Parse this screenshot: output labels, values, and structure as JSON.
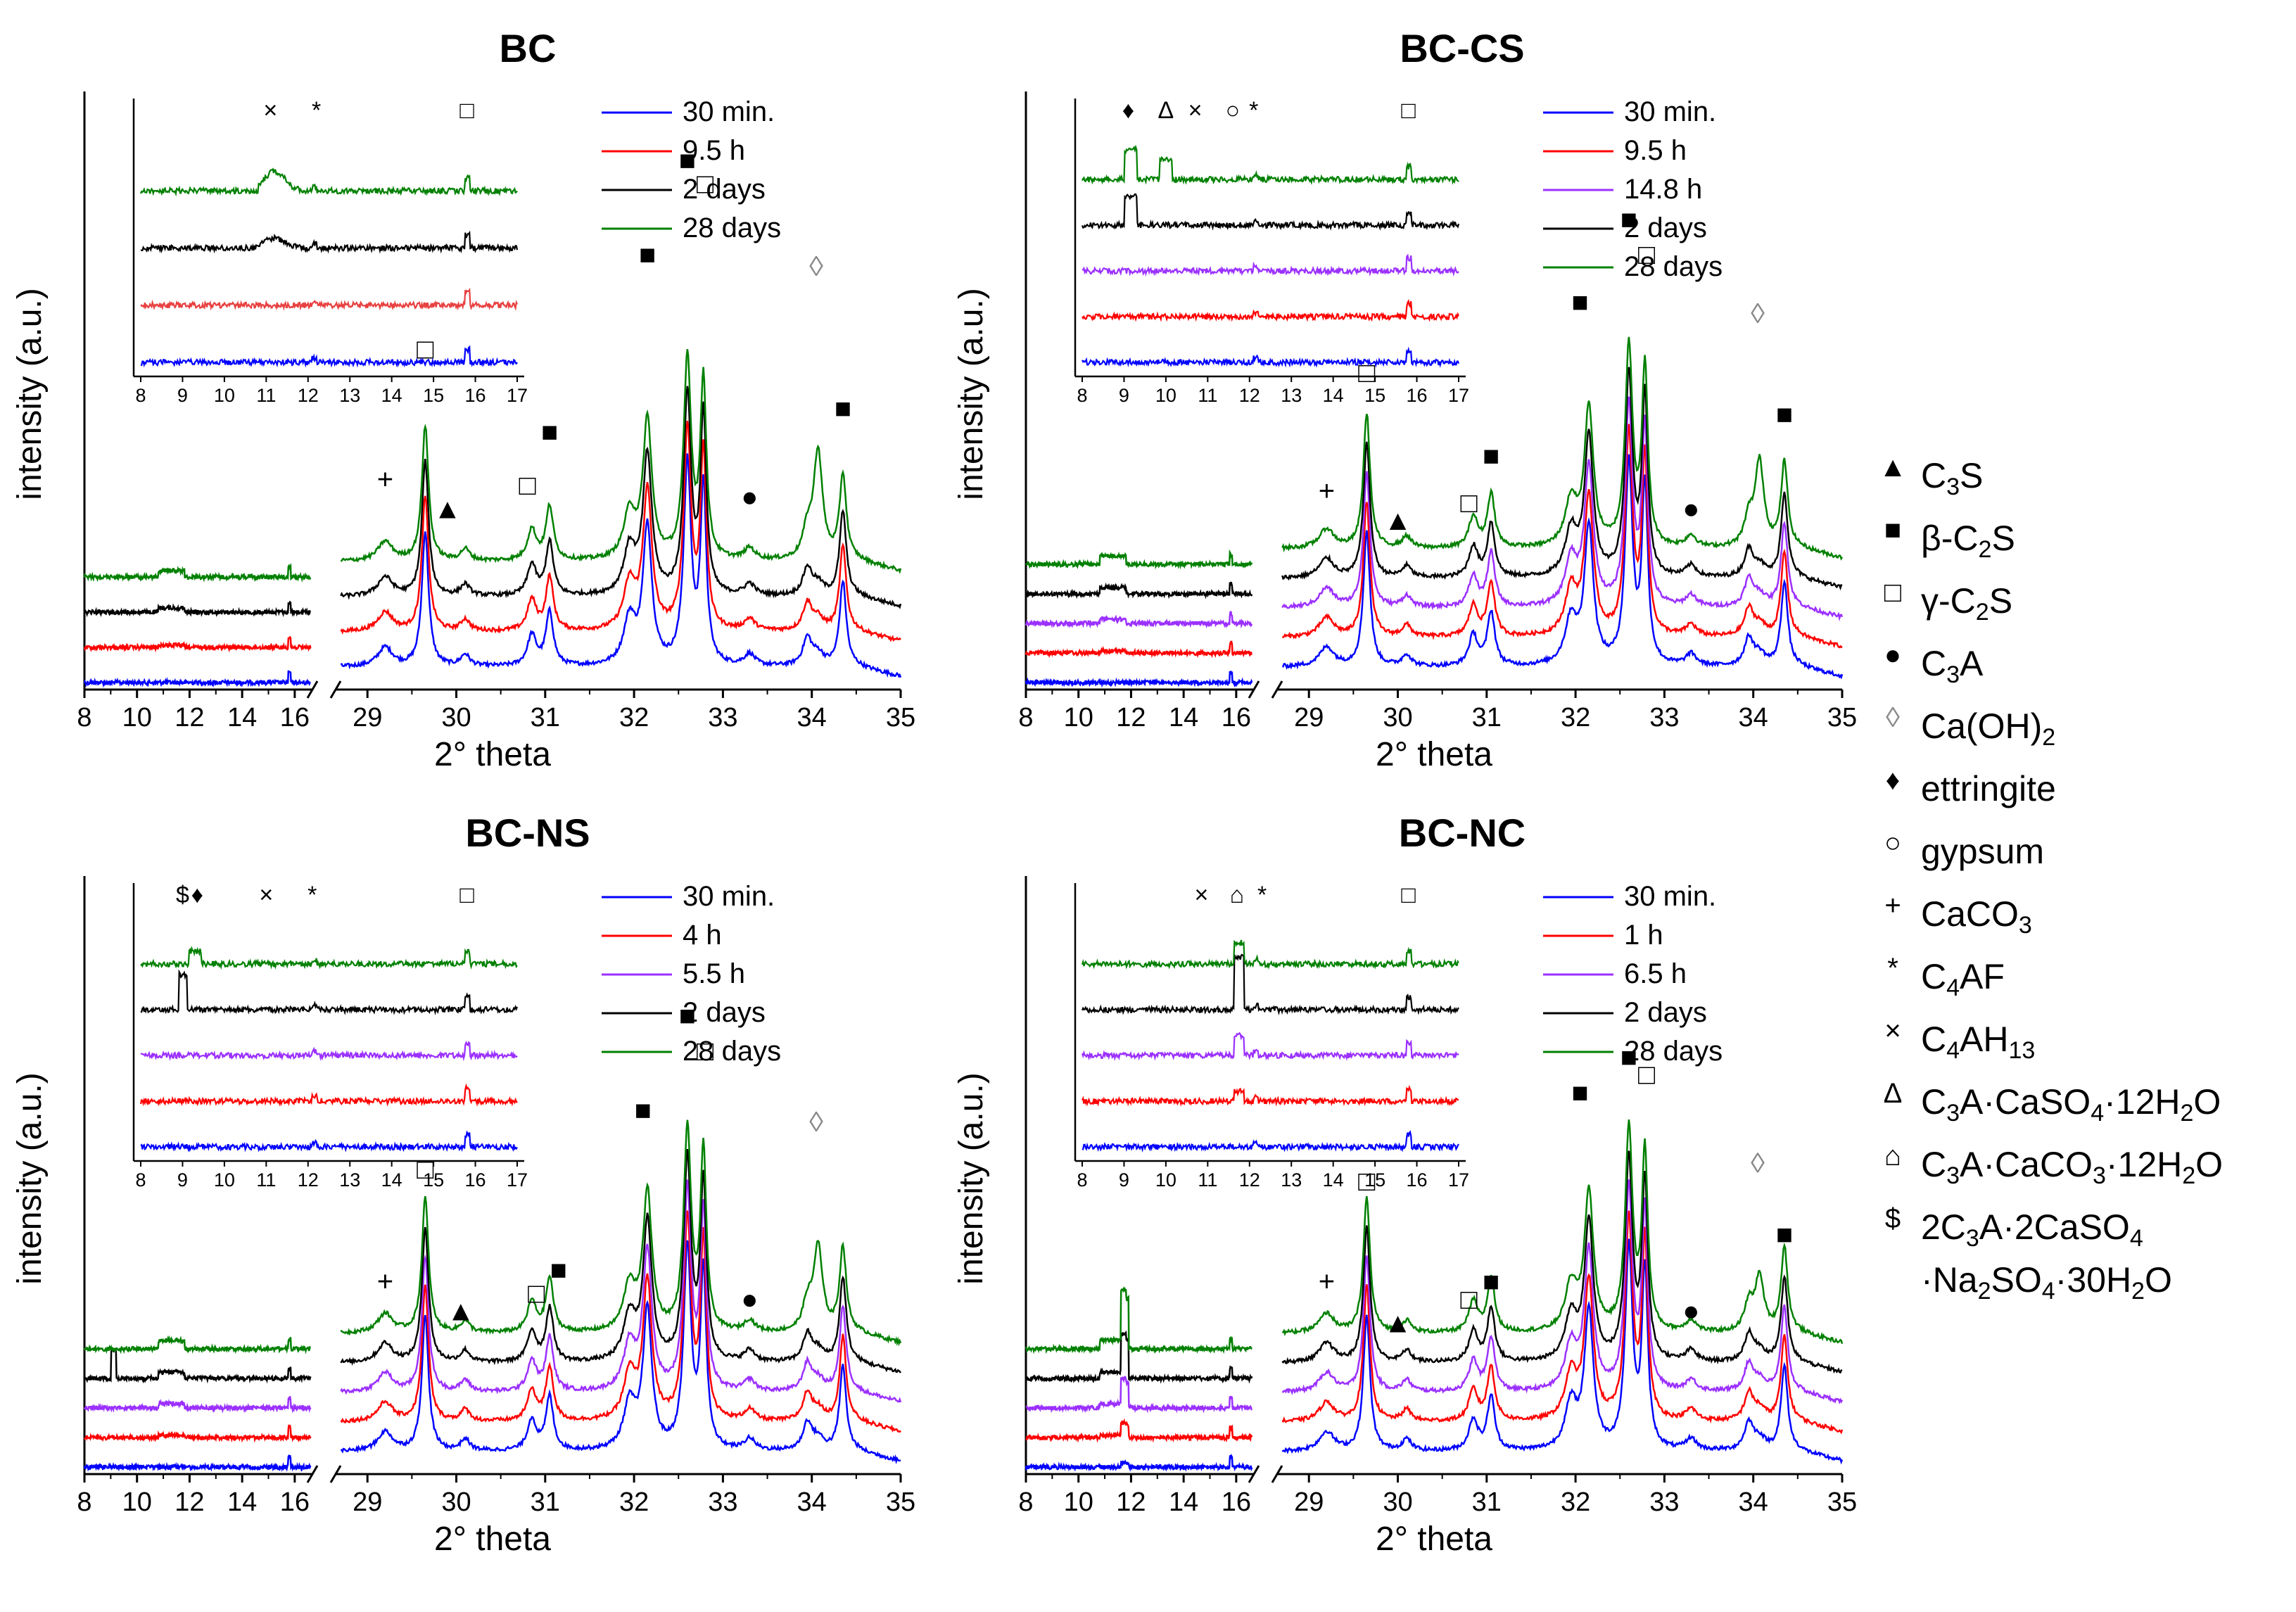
{
  "chart_data": [
    {
      "type": "line",
      "title": "BC",
      "xlabel": "2° theta",
      "ylabel": "intensity (a.u.)",
      "x_ticks_left": [
        "8",
        "10",
        "12",
        "14",
        "16"
      ],
      "x_ticks_right": [
        "29",
        "30",
        "31",
        "32",
        "33",
        "34",
        "35"
      ],
      "inset_ticks": [
        "8",
        "9",
        "10",
        "11",
        "12",
        "13",
        "14",
        "15",
        "16",
        "17"
      ],
      "legend": [
        "30 min.",
        "9.5 h",
        "2 days",
        "28 days"
      ],
      "series": [
        {
          "name": "30 min.",
          "color": "#0000ff"
        },
        {
          "name": "9.5 h",
          "color": "#ff0000"
        },
        {
          "name": "2 days",
          "color": "#000000"
        },
        {
          "name": "28 days",
          "color": "#008000"
        }
      ],
      "inset_markers": [
        {
          "sym": "×",
          "x": 11.1
        },
        {
          "sym": "*",
          "x": 12.2
        },
        {
          "sym": "□",
          "x": 15.8
        }
      ],
      "main_markers": [
        {
          "sym": "+",
          "x": 29.2,
          "y": 0.34
        },
        {
          "sym": "□",
          "x": 29.65,
          "y": 0.56
        },
        {
          "sym": "▲",
          "x": 29.9,
          "y": 0.29
        },
        {
          "sym": "□",
          "x": 30.8,
          "y": 0.33
        },
        {
          "sym": "■",
          "x": 31.05,
          "y": 0.42
        },
        {
          "sym": "■",
          "x": 32.15,
          "y": 0.72
        },
        {
          "sym": "■",
          "x": 32.6,
          "y": 0.88
        },
        {
          "sym": "□",
          "x": 32.8,
          "y": 0.84
        },
        {
          "sym": "●",
          "x": 33.3,
          "y": 0.31
        },
        {
          "sym": "◊",
          "x": 34.05,
          "y": 0.7
        },
        {
          "sym": "■",
          "x": 34.35,
          "y": 0.46
        }
      ]
    },
    {
      "type": "line",
      "title": "BC-CS",
      "xlabel": "2° theta",
      "ylabel": "intensity (a.u.)",
      "x_ticks_left": [
        "8",
        "10",
        "12",
        "14",
        "16"
      ],
      "x_ticks_right": [
        "29",
        "30",
        "31",
        "32",
        "33",
        "34",
        "35"
      ],
      "inset_ticks": [
        "8",
        "9",
        "10",
        "11",
        "12",
        "13",
        "14",
        "15",
        "16",
        "17"
      ],
      "legend": [
        "30 min.",
        "9.5 h",
        "14.8 h",
        "2 days",
        "28 days"
      ],
      "series": [
        {
          "name": "30 min.",
          "color": "#0000ff"
        },
        {
          "name": "9.5 h",
          "color": "#ff0000"
        },
        {
          "name": "14.8 h",
          "color": "#9b30ff"
        },
        {
          "name": "2 days",
          "color": "#000000"
        },
        {
          "name": "28 days",
          "color": "#008000"
        }
      ],
      "inset_markers": [
        {
          "sym": "♦",
          "x": 9.1
        },
        {
          "sym": "Δ",
          "x": 10.0
        },
        {
          "sym": "×",
          "x": 10.7
        },
        {
          "sym": "○",
          "x": 11.6
        },
        {
          "sym": "*",
          "x": 12.1
        },
        {
          "sym": "□",
          "x": 15.8
        }
      ],
      "main_markers": [
        {
          "sym": "+",
          "x": 29.2,
          "y": 0.32
        },
        {
          "sym": "□",
          "x": 29.65,
          "y": 0.52
        },
        {
          "sym": "▲",
          "x": 30.0,
          "y": 0.27
        },
        {
          "sym": "□",
          "x": 30.8,
          "y": 0.3
        },
        {
          "sym": "■",
          "x": 31.05,
          "y": 0.38
        },
        {
          "sym": "■",
          "x": 32.05,
          "y": 0.64
        },
        {
          "sym": "■",
          "x": 32.6,
          "y": 0.78
        },
        {
          "sym": "□",
          "x": 32.8,
          "y": 0.72
        },
        {
          "sym": "●",
          "x": 33.3,
          "y": 0.29
        },
        {
          "sym": "◊",
          "x": 34.05,
          "y": 0.62
        },
        {
          "sym": "■",
          "x": 34.35,
          "y": 0.45
        }
      ]
    },
    {
      "type": "line",
      "title": "BC-NS",
      "xlabel": "2° theta",
      "ylabel": "intensity (a.u.)",
      "x_ticks_left": [
        "8",
        "10",
        "12",
        "14",
        "16"
      ],
      "x_ticks_right": [
        "29",
        "30",
        "31",
        "32",
        "33",
        "34",
        "35"
      ],
      "inset_ticks": [
        "8",
        "9",
        "10",
        "11",
        "12",
        "13",
        "14",
        "15",
        "16",
        "17"
      ],
      "legend": [
        "30 min.",
        "4 h",
        "5.5 h",
        "2 days",
        "28 days"
      ],
      "series": [
        {
          "name": "30 min.",
          "color": "#0000ff"
        },
        {
          "name": "4 h",
          "color": "#ff0000"
        },
        {
          "name": "5.5 h",
          "color": "#9b30ff"
        },
        {
          "name": "2 days",
          "color": "#000000"
        },
        {
          "name": "28 days",
          "color": "#008000"
        }
      ],
      "inset_markers": [
        {
          "sym": "$",
          "x": 9.0
        },
        {
          "sym": "♦",
          "x": 9.35
        },
        {
          "sym": "×",
          "x": 11.0
        },
        {
          "sym": "*",
          "x": 12.1
        },
        {
          "sym": "□",
          "x": 15.8
        }
      ],
      "main_markers": [
        {
          "sym": "+",
          "x": 29.2,
          "y": 0.31
        },
        {
          "sym": "□",
          "x": 29.65,
          "y": 0.5
        },
        {
          "sym": "▲",
          "x": 30.05,
          "y": 0.26
        },
        {
          "sym": "□",
          "x": 30.9,
          "y": 0.29
        },
        {
          "sym": "■",
          "x": 31.15,
          "y": 0.33
        },
        {
          "sym": "■",
          "x": 32.1,
          "y": 0.6
        },
        {
          "sym": "■",
          "x": 32.6,
          "y": 0.76
        },
        {
          "sym": "□",
          "x": 32.8,
          "y": 0.7
        },
        {
          "sym": "●",
          "x": 33.3,
          "y": 0.28
        },
        {
          "sym": "◊",
          "x": 34.05,
          "y": 0.58
        }
      ]
    },
    {
      "type": "line",
      "title": "BC-NC",
      "xlabel": "2° theta",
      "ylabel": "intensity (a.u.)",
      "x_ticks_left": [
        "8",
        "10",
        "12",
        "14",
        "16"
      ],
      "x_ticks_right": [
        "29",
        "30",
        "31",
        "32",
        "33",
        "34",
        "35"
      ],
      "inset_ticks": [
        "8",
        "9",
        "10",
        "11",
        "12",
        "13",
        "14",
        "15",
        "16",
        "17"
      ],
      "legend": [
        "30 min.",
        "1 h",
        "6.5 h",
        "2 days",
        "28 days"
      ],
      "series": [
        {
          "name": "30 min.",
          "color": "#0000ff"
        },
        {
          "name": "1 h",
          "color": "#ff0000"
        },
        {
          "name": "6.5 h",
          "color": "#9b30ff"
        },
        {
          "name": "2 days",
          "color": "#000000"
        },
        {
          "name": "28 days",
          "color": "#008000"
        }
      ],
      "inset_markers": [
        {
          "sym": "×",
          "x": 10.85
        },
        {
          "sym": "⌂",
          "x": 11.7
        },
        {
          "sym": "*",
          "x": 12.3
        },
        {
          "sym": "□",
          "x": 15.8
        }
      ],
      "main_markers": [
        {
          "sym": "+",
          "x": 29.2,
          "y": 0.31
        },
        {
          "sym": "□",
          "x": 29.65,
          "y": 0.48
        },
        {
          "sym": "▲",
          "x": 30.0,
          "y": 0.24
        },
        {
          "sym": "□",
          "x": 30.8,
          "y": 0.28
        },
        {
          "sym": "■",
          "x": 31.05,
          "y": 0.31
        },
        {
          "sym": "■",
          "x": 32.05,
          "y": 0.63
        },
        {
          "sym": "■",
          "x": 32.6,
          "y": 0.69
        },
        {
          "sym": "□",
          "x": 32.8,
          "y": 0.66
        },
        {
          "sym": "●",
          "x": 33.3,
          "y": 0.26
        },
        {
          "sym": "◊",
          "x": 34.05,
          "y": 0.51
        },
        {
          "sym": "■",
          "x": 34.35,
          "y": 0.39
        }
      ]
    }
  ],
  "phase_legend": [
    {
      "sym": "▲",
      "label": "C",
      "parts": [
        [
          "C",
          ""
        ],
        [
          "3",
          "sub"
        ],
        [
          "S",
          ""
        ]
      ]
    },
    {
      "sym": "■",
      "parts": [
        [
          "β-C",
          ""
        ],
        [
          "2",
          "sub"
        ],
        [
          "S",
          ""
        ]
      ]
    },
    {
      "sym": "□",
      "parts": [
        [
          "γ-C",
          ""
        ],
        [
          "2",
          "sub"
        ],
        [
          "S",
          ""
        ]
      ]
    },
    {
      "sym": "●",
      "parts": [
        [
          "C",
          ""
        ],
        [
          "3",
          "sub"
        ],
        [
          "A",
          ""
        ]
      ]
    },
    {
      "sym": "◊",
      "parts": [
        [
          "Ca(OH)",
          ""
        ],
        [
          "2",
          "sub"
        ]
      ]
    },
    {
      "sym": "♦",
      "parts": [
        [
          "ettringite",
          ""
        ]
      ]
    },
    {
      "sym": "○",
      "parts": [
        [
          "gypsum",
          ""
        ]
      ]
    },
    {
      "sym": "+",
      "parts": [
        [
          "CaCO",
          ""
        ],
        [
          "3",
          "sub"
        ]
      ]
    },
    {
      "sym": "*",
      "parts": [
        [
          "C",
          ""
        ],
        [
          "4",
          "sub"
        ],
        [
          "AF",
          ""
        ]
      ]
    },
    {
      "sym": "×",
      "parts": [
        [
          "C",
          ""
        ],
        [
          "4",
          "sub"
        ],
        [
          "AH",
          ""
        ],
        [
          "13",
          "sub"
        ]
      ]
    },
    {
      "sym": "Δ",
      "parts": [
        [
          "C",
          ""
        ],
        [
          "3",
          "sub"
        ],
        [
          "A·CaSO",
          ""
        ],
        [
          "4",
          "sub"
        ],
        [
          "·12H",
          ""
        ],
        [
          "2",
          "sub"
        ],
        [
          "O",
          ""
        ]
      ]
    },
    {
      "sym": "⌂",
      "parts": [
        [
          "C",
          ""
        ],
        [
          "3",
          "sub"
        ],
        [
          "A·CaCO",
          ""
        ],
        [
          "3",
          "sub"
        ],
        [
          "·12H",
          ""
        ],
        [
          "2",
          "sub"
        ],
        [
          "O",
          ""
        ]
      ]
    },
    {
      "sym": "$",
      "parts": [
        [
          "2C",
          ""
        ],
        [
          "3",
          "sub"
        ],
        [
          "A·2CaSO",
          ""
        ],
        [
          "4",
          "sub"
        ]
      ]
    },
    {
      "sym": "",
      "parts": [
        [
          "·Na",
          ""
        ],
        [
          "2",
          "sub"
        ],
        [
          "SO",
          ""
        ],
        [
          "4",
          "sub"
        ],
        [
          "·30H",
          ""
        ],
        [
          "2",
          "sub"
        ],
        [
          "O",
          ""
        ]
      ]
    }
  ],
  "colors": {
    "blue": "#0000ff",
    "red": "#ff0000",
    "purple": "#9b30ff",
    "black": "#000000",
    "green": "#008000",
    "diamond_grey": "#888888"
  }
}
